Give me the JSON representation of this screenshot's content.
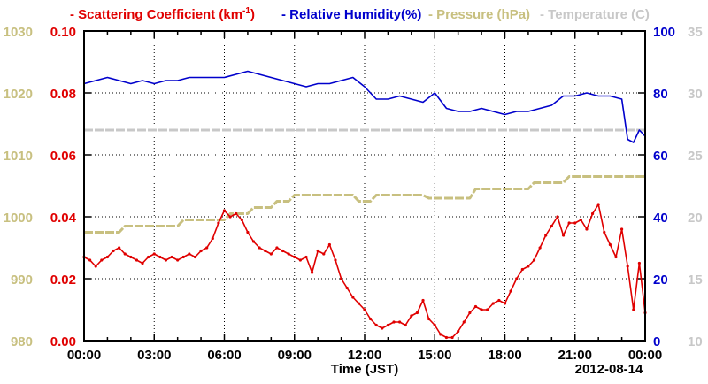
{
  "colors": {
    "scattering": "#e00000",
    "humidity": "#0000cc",
    "pressure": "#c8c080",
    "temperature": "#c8c8c8",
    "axis": "#000000",
    "grid": "#000000"
  },
  "legend": {
    "scattering_pre": "Scattering Coefficient (km",
    "scattering_sup": "-1",
    "scattering_post": ")",
    "humidity": "Relative Humidity(%)",
    "pressure": "Pressure (hPa)",
    "temperature": "Temperature (C)"
  },
  "x_axis": {
    "label": "Time (JST)",
    "ticks": [
      "00:00",
      "03:00",
      "06:00",
      "09:00",
      "12:00",
      "15:00",
      "18:00",
      "21:00",
      "00:00"
    ],
    "date": "2012-08-14"
  },
  "axes": {
    "pressure_ticks": [
      "980",
      "990",
      "1000",
      "1010",
      "1020",
      "1030"
    ],
    "scattering_ticks": [
      "0.00",
      "0.02",
      "0.04",
      "0.06",
      "0.08",
      "0.10"
    ],
    "humidity_ticks": [
      "0",
      "20",
      "40",
      "60",
      "80",
      "100"
    ],
    "temperature_ticks": [
      "10",
      "15",
      "20",
      "25",
      "30",
      "35"
    ]
  },
  "chart_data": {
    "type": "line",
    "x_unit": "hours",
    "xlim": [
      0,
      24
    ],
    "grid": true,
    "legend_position": "top",
    "series": [
      {
        "name": "Scattering Coefficient (km-1)",
        "axis": "left-inner",
        "ylim": [
          0,
          0.1
        ],
        "color": "#e00000",
        "markers": true,
        "x": [
          0,
          0.25,
          0.5,
          0.75,
          1,
          1.25,
          1.5,
          1.75,
          2,
          2.25,
          2.5,
          2.75,
          3,
          3.25,
          3.5,
          3.75,
          4,
          4.25,
          4.5,
          4.75,
          5,
          5.25,
          5.5,
          5.75,
          6,
          6.25,
          6.5,
          6.75,
          7,
          7.25,
          7.5,
          7.75,
          8,
          8.25,
          8.5,
          8.75,
          9,
          9.25,
          9.5,
          9.75,
          10,
          10.25,
          10.5,
          10.75,
          11,
          11.25,
          11.5,
          11.75,
          12,
          12.25,
          12.5,
          12.75,
          13,
          13.25,
          13.5,
          13.75,
          14,
          14.25,
          14.5,
          14.75,
          15,
          15.25,
          15.5,
          15.75,
          16,
          16.25,
          16.5,
          16.75,
          17,
          17.25,
          17.5,
          17.75,
          18,
          18.25,
          18.5,
          18.75,
          19,
          19.25,
          19.5,
          19.75,
          20,
          20.25,
          20.5,
          20.75,
          21,
          21.25,
          21.5,
          21.75,
          22,
          22.25,
          22.5,
          22.75,
          23,
          23.25,
          23.5,
          23.75,
          24
        ],
        "values": [
          0.027,
          0.026,
          0.024,
          0.026,
          0.027,
          0.029,
          0.03,
          0.028,
          0.027,
          0.026,
          0.025,
          0.027,
          0.028,
          0.027,
          0.026,
          0.027,
          0.026,
          0.027,
          0.028,
          0.027,
          0.029,
          0.03,
          0.033,
          0.038,
          0.042,
          0.04,
          0.041,
          0.039,
          0.035,
          0.032,
          0.03,
          0.029,
          0.028,
          0.03,
          0.029,
          0.028,
          0.027,
          0.026,
          0.027,
          0.022,
          0.029,
          0.028,
          0.031,
          0.026,
          0.02,
          0.017,
          0.014,
          0.012,
          0.01,
          0.007,
          0.005,
          0.004,
          0.005,
          0.006,
          0.006,
          0.005,
          0.008,
          0.009,
          0.013,
          0.007,
          0.005,
          0.002,
          0.001,
          0.001,
          0.003,
          0.006,
          0.009,
          0.011,
          0.01,
          0.01,
          0.012,
          0.013,
          0.012,
          0.016,
          0.02,
          0.023,
          0.024,
          0.026,
          0.03,
          0.034,
          0.037,
          0.04,
          0.034,
          0.038,
          0.038,
          0.039,
          0.036,
          0.041,
          0.044,
          0.035,
          0.031,
          0.027,
          0.036,
          0.024,
          0.01,
          0.025,
          0.009
        ]
      },
      {
        "name": "Relative Humidity(%)",
        "axis": "right-inner",
        "ylim": [
          0,
          100
        ],
        "color": "#0000cc",
        "markers": false,
        "x": [
          0,
          0.5,
          1,
          1.5,
          2,
          2.5,
          3,
          3.5,
          4,
          4.5,
          5,
          5.5,
          6,
          6.5,
          7,
          7.5,
          8,
          8.5,
          9,
          9.5,
          10,
          10.5,
          11,
          11.5,
          12,
          12.5,
          13,
          13.5,
          14,
          14.5,
          15,
          15.5,
          16,
          16.5,
          17,
          17.5,
          18,
          18.5,
          19,
          19.5,
          20,
          20.5,
          21,
          21.5,
          22,
          22.5,
          23,
          23.25,
          23.5,
          23.75,
          24
        ],
        "values": [
          83,
          84,
          85,
          84,
          83,
          84,
          83,
          84,
          84,
          85,
          85,
          85,
          85,
          86,
          87,
          86,
          85,
          84,
          83,
          82,
          83,
          83,
          84,
          85,
          82,
          78,
          78,
          79,
          78,
          77,
          80,
          75,
          74,
          74,
          75,
          74,
          73,
          74,
          74,
          75,
          76,
          79,
          79,
          80,
          79,
          79,
          78,
          65,
          64,
          68,
          66
        ]
      },
      {
        "name": "Pressure (hPa)",
        "axis": "left-outer",
        "ylim": [
          980,
          1030
        ],
        "color": "#c8c080",
        "markers": false,
        "x": [
          0,
          1.5,
          1.75,
          4.0,
          4.25,
          6.0,
          6.25,
          7.0,
          7.25,
          8.0,
          8.25,
          8.75,
          9.0,
          11.5,
          11.75,
          12.25,
          12.5,
          14.5,
          14.75,
          16.5,
          16.75,
          19.0,
          19.25,
          20.5,
          20.75,
          24
        ],
        "values": [
          997.5,
          997.5,
          998.5,
          998.5,
          999.5,
          999.5,
          1000.5,
          1000.5,
          1001.5,
          1001.5,
          1002.5,
          1002.5,
          1003.5,
          1003.5,
          1002.5,
          1002.5,
          1003.5,
          1003.5,
          1003,
          1003,
          1004.5,
          1004.5,
          1005.5,
          1005.5,
          1006.5,
          1006.5
        ]
      },
      {
        "name": "Temperature (C)",
        "axis": "right-outer",
        "ylim": [
          10,
          35
        ],
        "color": "#c8c8c8",
        "markers": false,
        "x": [
          0,
          24
        ],
        "values": [
          27,
          27
        ]
      }
    ]
  }
}
